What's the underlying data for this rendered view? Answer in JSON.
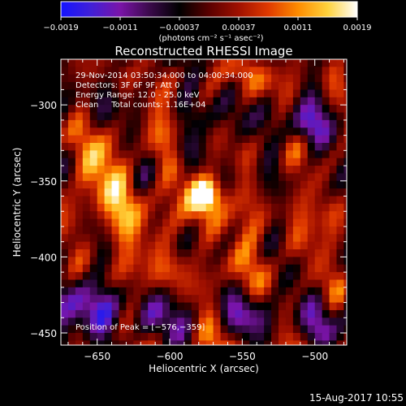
{
  "chart_data": {
    "type": "heatmap",
    "title": "Reconstructed RHESSI Image",
    "xlabel": "Heliocentric X (arcsec)",
    "ylabel": "Heliocentric Y (arcsec)",
    "xlim": [
      -675,
      -478
    ],
    "ylim": [
      -458,
      -270
    ],
    "x_ticks": [
      -650,
      -600,
      -550,
      -500
    ],
    "x_tick_labels": [
      "−650",
      "−600",
      "−550",
      "−500"
    ],
    "y_ticks": [
      -300,
      -350,
      -400,
      -450
    ],
    "y_tick_labels": [
      "−300",
      "−350",
      "−400",
      "−450"
    ],
    "colorbar": {
      "min": -0.0019,
      "max": 0.0019,
      "tick_labels": [
        "−0.0019",
        "−0.0011",
        "−0.00037",
        "0.00037",
        "0.0011",
        "0.0019"
      ],
      "unit_label": "(photons cm⁻² s⁻¹ asec⁻²)",
      "stops": [
        "#1414ff",
        "#4020d8",
        "#7a14a8",
        "#3a0a4a",
        "#000000",
        "#5a0000",
        "#a01000",
        "#e03a00",
        "#ff8c00",
        "#ffd23c",
        "#ffffff"
      ]
    },
    "annotations": {
      "line1": "29-Nov-2014 03:50:34.000 to 04:00:34.000",
      "line2": "Detectors: 3F 6F 9F, Att 0",
      "line3": "Energy Range: 12.0 - 25.0 keV",
      "line4": "Clean     Total counts: 1.16E+04",
      "peak": "Position of Peak = [−576,−359]"
    },
    "peak_position": [
      -576,
      -359
    ],
    "footer_timestamp": "15-Aug-2017 10:55",
    "sources": [
      {
        "x": -576,
        "y": -359,
        "sigma": 8,
        "amp": 1.0
      },
      {
        "x": -530,
        "y": -285,
        "sigma": 11,
        "amp": 0.5
      },
      {
        "x": -552,
        "y": -275,
        "sigma": 9,
        "amp": 0.45
      },
      {
        "x": -508,
        "y": -395,
        "sigma": 10,
        "amp": 0.45
      },
      {
        "x": -555,
        "y": -405,
        "sigma": 12,
        "amp": 0.35
      },
      {
        "x": -650,
        "y": -345,
        "sigma": 14,
        "amp": 0.35
      },
      {
        "x": -640,
        "y": -385,
        "sigma": 12,
        "amp": 0.3
      },
      {
        "x": -600,
        "y": -300,
        "sigma": 13,
        "amp": 0.3
      },
      {
        "x": -620,
        "y": -410,
        "sigma": 13,
        "amp": 0.3
      },
      {
        "x": -490,
        "y": -420,
        "sigma": 9,
        "amp": 0.35
      }
    ],
    "negative_regions": [
      {
        "x": -655,
        "y": -435,
        "sigma": 14,
        "amp": 0.55
      },
      {
        "x": -605,
        "y": -445,
        "sigma": 12,
        "amp": 0.35
      },
      {
        "x": -590,
        "y": -330,
        "sigma": 8,
        "amp": 0.4
      },
      {
        "x": -505,
        "y": -315,
        "sigma": 8,
        "amp": 0.45
      },
      {
        "x": -540,
        "y": -440,
        "sigma": 10,
        "amp": 0.35
      },
      {
        "x": -495,
        "y": -450,
        "sigma": 9,
        "amp": 0.35
      }
    ]
  }
}
